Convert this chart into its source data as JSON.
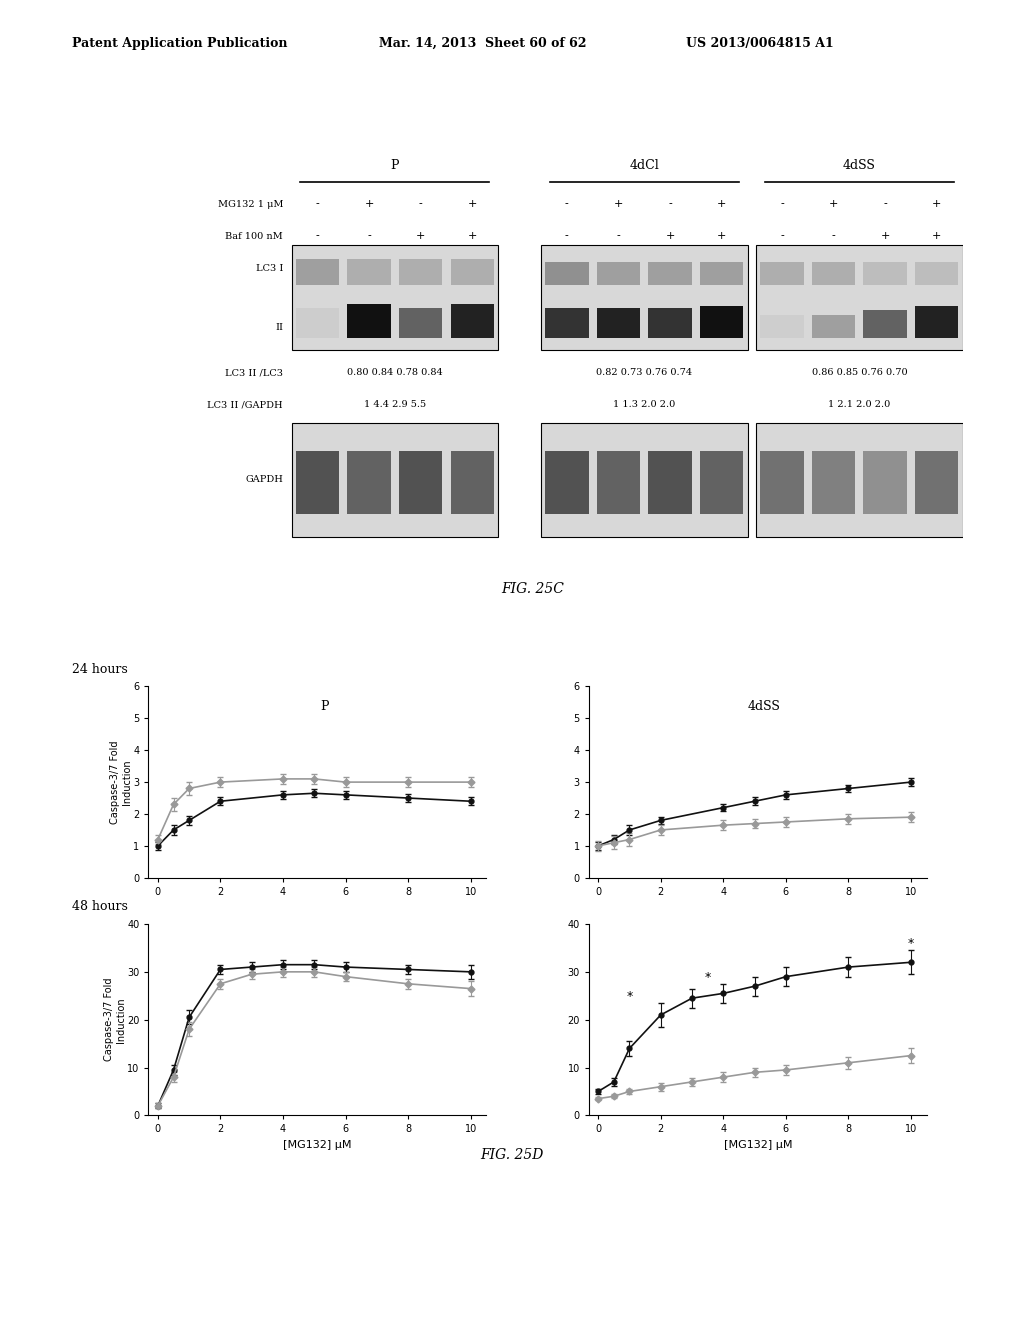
{
  "header_left": "Patent Application Publication",
  "header_mid": "Mar. 14, 2013  Sheet 60 of 62",
  "header_right": "US 2013/0064815 A1",
  "fig_label_c": "FIG. 25C",
  "fig_label_d": "FIG. 25D",
  "blot_groups": [
    "P",
    "4dCl",
    "4dSS"
  ],
  "mg132_label": "MG132 1 μM",
  "baf_label": "Baf 100 nM",
  "mg132_signs": [
    "-",
    "+",
    "-",
    "+"
  ],
  "baf_signs": [
    "-",
    "-",
    "+",
    "+"
  ],
  "lc3_label": "LC3 I",
  "lc3_II_label": "II",
  "lc3_ratio_label": "LC3 II /LC3",
  "lc3_gapdh_label": "LC3 II /GAPDH",
  "gapdh_label": "GAPDH",
  "lc3_ratios": {
    "P": [
      "0.80",
      "0.84",
      "0.78",
      "0.84"
    ],
    "4dCl": [
      "0.82",
      "0.73",
      "0.76",
      "0.74"
    ],
    "4dSS": [
      "0.86",
      "0.85",
      "0.76",
      "0.70"
    ]
  },
  "gapdh_ratios": {
    "P": [
      "1",
      "4.4",
      "2.9",
      "5.5"
    ],
    "4dCl": [
      "1",
      "1.3",
      "2.0",
      "2.0"
    ],
    "4dSS": [
      "1",
      "2.1",
      "2.0",
      "2.0"
    ]
  },
  "plot_24h_P_black_x": [
    0,
    0.5,
    1,
    2,
    4,
    5,
    6,
    8,
    10
  ],
  "plot_24h_P_black_y": [
    1.0,
    1.5,
    1.8,
    2.4,
    2.6,
    2.65,
    2.6,
    2.5,
    2.4
  ],
  "plot_24h_P_gray_x": [
    0,
    0.5,
    1,
    2,
    4,
    5,
    6,
    8,
    10
  ],
  "plot_24h_P_gray_y": [
    1.2,
    2.3,
    2.8,
    3.0,
    3.1,
    3.1,
    3.0,
    3.0,
    3.0
  ],
  "plot_24h_4dSS_black_x": [
    0,
    0.5,
    1,
    2,
    4,
    5,
    6,
    8,
    10
  ],
  "plot_24h_4dSS_black_y": [
    1.0,
    1.2,
    1.5,
    1.8,
    2.2,
    2.4,
    2.6,
    2.8,
    3.0
  ],
  "plot_24h_4dSS_gray_x": [
    0,
    0.5,
    1,
    2,
    4,
    5,
    6,
    8,
    10
  ],
  "plot_24h_4dSS_gray_y": [
    1.0,
    1.1,
    1.2,
    1.5,
    1.65,
    1.7,
    1.75,
    1.85,
    1.9
  ],
  "plot_48h_P_black_x": [
    0,
    0.5,
    1,
    2,
    3,
    4,
    5,
    6,
    8,
    10
  ],
  "plot_48h_P_black_y": [
    2.0,
    9.5,
    20.5,
    30.5,
    31.0,
    31.5,
    31.5,
    31.0,
    30.5,
    30.0
  ],
  "plot_48h_P_gray_x": [
    0,
    0.5,
    1,
    2,
    3,
    4,
    5,
    6,
    8,
    10
  ],
  "plot_48h_P_gray_y": [
    2.0,
    8.0,
    18.0,
    27.5,
    29.5,
    30.0,
    30.0,
    29.0,
    27.5,
    26.5
  ],
  "plot_48h_4dSS_black_x": [
    0,
    0.5,
    1,
    2,
    3,
    4,
    5,
    6,
    8,
    10
  ],
  "plot_48h_4dSS_black_y": [
    5.0,
    7.0,
    14.0,
    21.0,
    24.5,
    25.5,
    27.0,
    29.0,
    31.0,
    32.0
  ],
  "plot_48h_4dSS_gray_x": [
    0,
    0.5,
    1,
    2,
    3,
    4,
    5,
    6,
    8,
    10
  ],
  "plot_48h_4dSS_gray_y": [
    3.5,
    4.0,
    5.0,
    6.0,
    7.0,
    8.0,
    9.0,
    9.5,
    11.0,
    12.5
  ],
  "err_24_black": [
    0.12,
    0.15,
    0.15,
    0.12,
    0.12,
    0.12,
    0.12,
    0.12,
    0.12
  ],
  "err_24_gray": [
    0.15,
    0.2,
    0.2,
    0.15,
    0.15,
    0.15,
    0.15,
    0.15,
    0.15
  ],
  "err_48_P_black": [
    0.5,
    1.0,
    1.5,
    1.0,
    1.0,
    1.0,
    1.0,
    1.0,
    1.0,
    1.5
  ],
  "err_48_P_gray": [
    0.5,
    1.0,
    1.5,
    1.0,
    1.0,
    1.0,
    1.0,
    1.0,
    1.0,
    1.5
  ],
  "err_48_4dSS_black": [
    0.5,
    0.8,
    1.5,
    2.5,
    2.0,
    2.0,
    2.0,
    2.0,
    2.0,
    2.5
  ],
  "err_48_4dSS_gray": [
    0.3,
    0.4,
    0.5,
    0.8,
    0.8,
    1.0,
    1.0,
    1.0,
    1.2,
    1.5
  ],
  "ylabel_caspase": "Caspase-3/7 Fold\nInduction",
  "xlabel_mg132": "[MG132] μM",
  "title_P": "P",
  "title_4dSS": "4dSS",
  "label_24h": "24 hours",
  "label_48h": "48 hours",
  "bg_color": "#ffffff"
}
